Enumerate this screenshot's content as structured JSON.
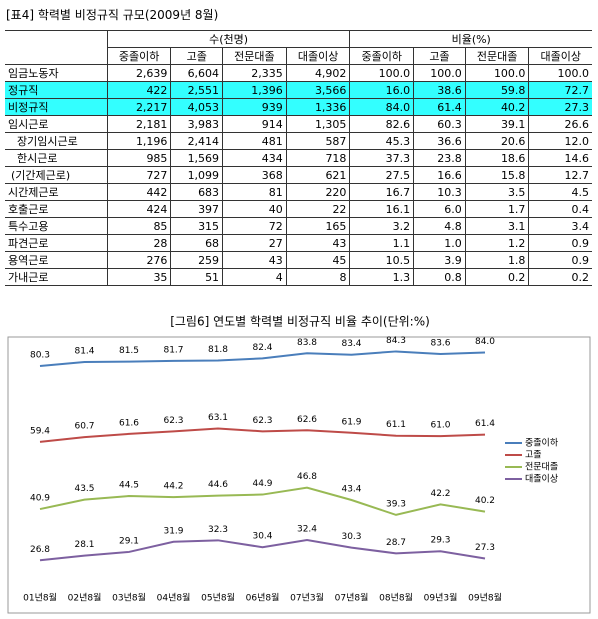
{
  "table": {
    "title": "[표4] 학력별 비정규직 규모(2009년 8월)",
    "group_headers": [
      "수(천명)",
      "비율(%)"
    ],
    "columns": [
      "중졸이하",
      "고졸",
      "전문대졸",
      "대졸이상",
      "중졸이하",
      "고졸",
      "전문대졸",
      "대졸이상"
    ],
    "rows": [
      [
        "임금노동자",
        "2,639",
        "6,604",
        "2,335",
        "4,902",
        "100.0",
        "100.0",
        "100.0",
        "100.0"
      ],
      [
        "정규직",
        "422",
        "2,551",
        "1,396",
        "3,566",
        "16.0",
        "38.6",
        "59.8",
        "72.7"
      ],
      [
        "비정규직",
        "2,217",
        "4,053",
        "939",
        "1,336",
        "84.0",
        "61.4",
        "40.2",
        "27.3"
      ],
      [
        "임시근로",
        "2,181",
        "3,983",
        "914",
        "1,305",
        "82.6",
        "60.3",
        "39.1",
        "26.6"
      ],
      [
        "장기임시근로",
        "1,196",
        "2,414",
        "481",
        "587",
        "45.3",
        "36.6",
        "20.6",
        "12.0"
      ],
      [
        "한시근로",
        "985",
        "1,569",
        "434",
        "718",
        "37.3",
        "23.8",
        "18.6",
        "14.6"
      ],
      [
        "(기간제근로)",
        "727",
        "1,099",
        "368",
        "621",
        "27.5",
        "16.6",
        "15.8",
        "12.7"
      ],
      [
        "시간제근로",
        "442",
        "683",
        "81",
        "220",
        "16.7",
        "10.3",
        "3.5",
        "4.5"
      ],
      [
        "호출근로",
        "424",
        "397",
        "40",
        "22",
        "16.1",
        "6.0",
        "1.7",
        "0.4"
      ],
      [
        "특수고용",
        "85",
        "315",
        "72",
        "165",
        "3.2",
        "4.8",
        "3.1",
        "3.4"
      ],
      [
        "파견근로",
        "28",
        "68",
        "27",
        "43",
        "1.1",
        "1.0",
        "1.2",
        "0.9"
      ],
      [
        "용역근로",
        "276",
        "259",
        "43",
        "45",
        "10.5",
        "3.9",
        "1.8",
        "0.9"
      ],
      [
        "가내근로",
        "35",
        "51",
        "4",
        "8",
        "1.3",
        "0.8",
        "0.2",
        "0.2"
      ]
    ]
  },
  "chart_data": {
    "type": "line",
    "title": "[그림6] 연도별 학력별 비정규직 비율 추이(단위:%)",
    "categories": [
      "01년8월",
      "02년8월",
      "03년8월",
      "04년8월",
      "05년8월",
      "06년8월",
      "07년3월",
      "07년8월",
      "08년8월",
      "09년3월",
      "09년8월"
    ],
    "ylim": [
      20,
      88
    ],
    "series": [
      {
        "name": "중졸이하",
        "color": "#4a7ebb",
        "values": [
          80.3,
          81.4,
          81.5,
          81.7,
          81.8,
          82.4,
          83.8,
          83.4,
          84.3,
          83.6,
          84.0
        ],
        "value_labels": [
          "80.3",
          "81.4",
          "81.5",
          "81.7",
          "81.8",
          "82.4",
          "83.8",
          "83.4",
          "84.3",
          "83.6",
          "84.0"
        ]
      },
      {
        "name": "고졸",
        "color": "#be4b48",
        "values": [
          59.4,
          60.7,
          61.6,
          62.3,
          63.1,
          62.3,
          62.6,
          61.9,
          61.1,
          61.0,
          61.4
        ],
        "value_labels": [
          "59.4",
          "60.7",
          "61.6",
          "62.3",
          "63.1",
          "62.3",
          "62.6",
          "61.9",
          "61.1",
          "61.0",
          "61.4"
        ]
      },
      {
        "name": "전문대졸",
        "color": "#98b954",
        "values": [
          40.9,
          43.5,
          44.5,
          44.2,
          44.6,
          44.9,
          46.8,
          43.4,
          39.3,
          42.2,
          40.2
        ],
        "value_labels": [
          "40.9",
          "43.5",
          "44.5",
          "44.2",
          "44.6",
          "44.9",
          "46.8",
          "43.4",
          "39.3",
          "42.2",
          "40.2"
        ]
      },
      {
        "name": "대졸이상",
        "color": "#7d60a0",
        "values": [
          26.8,
          28.1,
          29.1,
          31.9,
          32.3,
          30.4,
          32.4,
          30.3,
          28.7,
          29.3,
          27.3
        ],
        "value_labels": [
          "26.8",
          "28.1",
          "29.1",
          "31.9",
          "32.3",
          "30.4",
          "32.4",
          "30.3",
          "28.7",
          "29.3",
          "27.3"
        ]
      }
    ]
  }
}
